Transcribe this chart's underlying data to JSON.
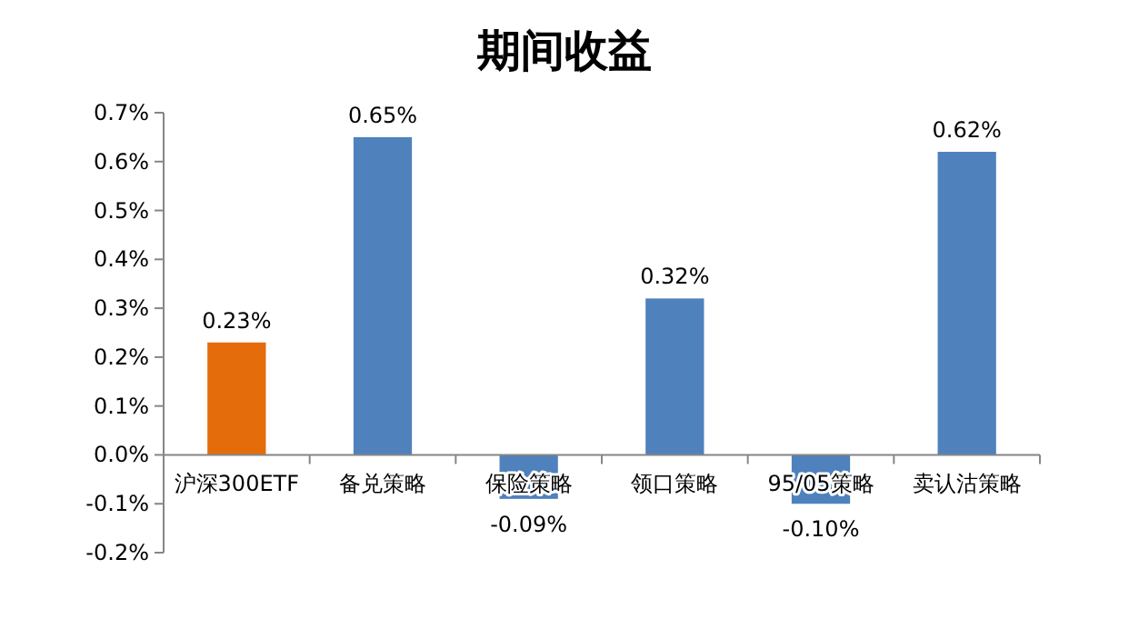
{
  "chart_data": {
    "type": "bar",
    "title": "期间收益",
    "categories": [
      "沪深300ETF",
      "备兑策略",
      "保险策略",
      "领口策略",
      "95/05策略",
      "卖认沽策略"
    ],
    "values": [
      0.23,
      0.65,
      -0.09,
      0.32,
      -0.1,
      0.62
    ],
    "colors": [
      "#e46c0a",
      "#4f81bd",
      "#4f81bd",
      "#4f81bd",
      "#4f81bd",
      "#4f81bd"
    ],
    "value_labels": [
      "0.23%",
      "0.65%",
      "-0.09%",
      "0.32%",
      "-0.10%",
      "0.62%"
    ],
    "ylim": [
      -0.2,
      0.7
    ],
    "yticks": [
      {
        "value": -0.2,
        "label": "-0.2%"
      },
      {
        "value": -0.1,
        "label": "-0.1%"
      },
      {
        "value": 0,
        "label": "0.0%"
      },
      {
        "value": 0.1,
        "label": "0.1%"
      },
      {
        "value": 0.2,
        "label": "0.2%"
      },
      {
        "value": 0.3,
        "label": "0.3%"
      },
      {
        "value": 0.4,
        "label": "0.4%"
      },
      {
        "value": 0.5,
        "label": "0.5%"
      },
      {
        "value": 0.6,
        "label": "0.6%"
      },
      {
        "value": 0.7,
        "label": "0.7%"
      }
    ],
    "grid": false
  }
}
